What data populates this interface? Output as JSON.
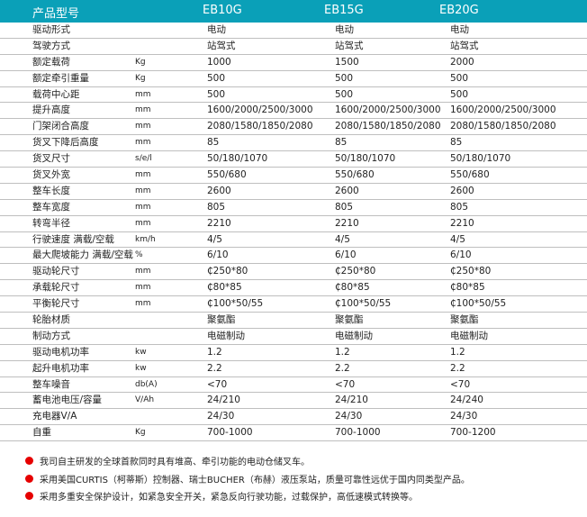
{
  "header": {
    "label": "产品型号",
    "models": [
      "EB10G",
      "EB15G",
      "EB20G"
    ],
    "color": "#0aa0b8"
  },
  "rows": [
    {
      "label": "驱动形式",
      "unit": "",
      "values": [
        "电动",
        "电动",
        "电动"
      ]
    },
    {
      "label": "驾驶方式",
      "unit": "",
      "values": [
        "站驾式",
        "站驾式",
        "站驾式"
      ]
    },
    {
      "label": "额定载荷",
      "unit": "Kg",
      "values": [
        "1000",
        "1500",
        "2000"
      ]
    },
    {
      "label": "额定牵引重量",
      "unit": "Kg",
      "values": [
        "500",
        "500",
        "500"
      ]
    },
    {
      "label": "载荷中心距",
      "unit": "mm",
      "values": [
        "500",
        "500",
        "500"
      ]
    },
    {
      "label": "提升高度",
      "unit": "mm",
      "values": [
        "1600/2000/2500/3000",
        "1600/2000/2500/3000",
        "1600/2000/2500/3000"
      ]
    },
    {
      "label": "门架闭合高度",
      "unit": "mm",
      "values": [
        "2080/1580/1850/2080",
        "2080/1580/1850/2080",
        "2080/1580/1850/2080"
      ]
    },
    {
      "label": "货叉下降后高度",
      "unit": "mm",
      "values": [
        "85",
        "85",
        "85"
      ]
    },
    {
      "label": "货叉尺寸",
      "unit": "s/e/l",
      "values": [
        "50/180/1070",
        "50/180/1070",
        "50/180/1070"
      ]
    },
    {
      "label": "货叉外宽",
      "unit": "mm",
      "values": [
        "550/680",
        "550/680",
        "550/680"
      ]
    },
    {
      "label": "整车长度",
      "unit": "mm",
      "values": [
        "2600",
        "2600",
        "2600"
      ]
    },
    {
      "label": "整车宽度",
      "unit": "mm",
      "values": [
        "805",
        "805",
        "805"
      ]
    },
    {
      "label": "转弯半径",
      "unit": "mm",
      "values": [
        "2210",
        "2210",
        "2210"
      ]
    },
    {
      "label": "行驶速度 满载/空载",
      "unit": "km/h",
      "values": [
        "4/5",
        "4/5",
        "4/5"
      ]
    },
    {
      "label": "最大爬坡能力 满载/空载",
      "unit": "%",
      "values": [
        "6/10",
        "6/10",
        "6/10"
      ]
    },
    {
      "label": "驱动轮尺寸",
      "unit": "mm",
      "values": [
        "₵250*80",
        "₵250*80",
        "₵250*80"
      ]
    },
    {
      "label": "承载轮尺寸",
      "unit": "mm",
      "values": [
        "₵80*85",
        "₵80*85",
        "₵80*85"
      ]
    },
    {
      "label": "平衡轮尺寸",
      "unit": "mm",
      "values": [
        "₵100*50/55",
        "₵100*50/55",
        "₵100*50/55"
      ]
    },
    {
      "label": "轮胎材质",
      "unit": "",
      "values": [
        "聚氨酯",
        "聚氨酯",
        "聚氨酯"
      ]
    },
    {
      "label": "制动方式",
      "unit": "",
      "values": [
        "电磁制动",
        "电磁制动",
        "电磁制动"
      ]
    },
    {
      "label": "驱动电机功率",
      "unit": "kw",
      "values": [
        "1.2",
        "1.2",
        "1.2"
      ]
    },
    {
      "label": "起升电机功率",
      "unit": "kw",
      "values": [
        "2.2",
        "2.2",
        "2.2"
      ]
    },
    {
      "label": "整车噪音",
      "unit": "db(A)",
      "values": [
        "<70",
        "<70",
        "<70"
      ]
    },
    {
      "label": "蓄电池电压/容量",
      "unit": "V/Ah",
      "values": [
        "24/210",
        "24/210",
        "24/240"
      ]
    },
    {
      "label": "充电器V/A",
      "unit": "",
      "values": [
        "24/30",
        "24/30",
        "24/30"
      ]
    },
    {
      "label": "自重",
      "unit": "Kg",
      "values": [
        "700-1000",
        "700-1000",
        "700-1200"
      ]
    }
  ],
  "notes": [
    "我司自主研发的全球首款同时具有堆高、牵引功能的电动仓储叉车。",
    "采用美国CURTIS（柯蒂斯）控制器、瑞士BUCHER（布赫）液压泵站，质量可靠性远优于国内同类型产品。",
    "采用多重安全保护设计，如紧急安全开关，紧急反向行驶功能，过载保护，高低速模式转换等。"
  ],
  "bullet_color": "#e60000"
}
